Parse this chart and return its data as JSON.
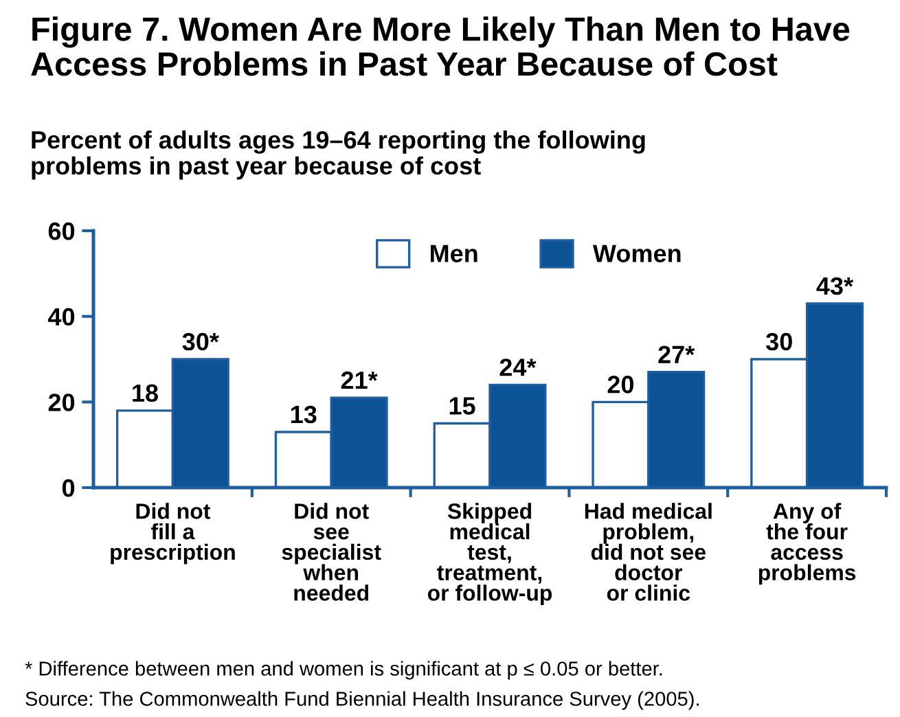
{
  "chart_data": {
    "type": "bar",
    "title": "Figure 7. Women Are More Likely Than Men to Have\nAccess Problems in Past Year Because of Cost",
    "subtitle": "Percent of adults ages 19–64 reporting the following\nproblems in past year because of cost",
    "categories": [
      "Did not\nfill a\nprescription",
      "Did not\nsee\nspecialist\nwhen\nneeded",
      "Skipped\nmedical\ntest,\ntreatment,\nor follow-up",
      "Had medical\nproblem,\ndid not see\ndoctor\nor clinic",
      "Any of\nthe four\naccess\nproblems"
    ],
    "series": [
      {
        "name": "Men",
        "color": "#ffffff",
        "values": [
          18,
          13,
          15,
          20,
          30
        ],
        "value_labels": [
          "18",
          "13",
          "15",
          "20",
          "30"
        ]
      },
      {
        "name": "Women",
        "color": "#0b5394",
        "values": [
          30,
          21,
          24,
          27,
          43
        ],
        "value_labels": [
          "30*",
          "21*",
          "24*",
          "27*",
          "43*"
        ]
      }
    ],
    "ylim": [
      0,
      60
    ],
    "yticks": [
      0,
      20,
      40,
      60
    ],
    "grid": false,
    "legend": "top",
    "annotations": [
      "* Difference between men and women is significant at p ≤ 0.05 or better.",
      "Source: The Commonwealth Fund Biennial Health Insurance Survey (2005)."
    ]
  }
}
